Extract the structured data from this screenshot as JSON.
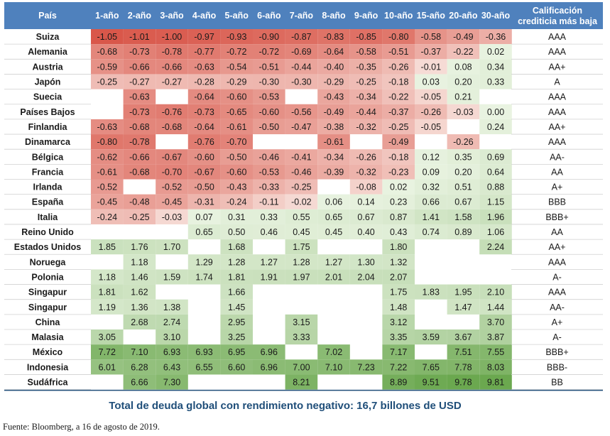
{
  "chart_data": {
    "type": "heatmap",
    "header_country": "País",
    "header_rating": "Calificación crediticia más baja",
    "columns": [
      "1-año",
      "2-año",
      "3-año",
      "4-año",
      "5-año",
      "6-año",
      "7-año",
      "8-año",
      "9-año",
      "10-año",
      "15-año",
      "20-año",
      "30-año"
    ],
    "rows": [
      {
        "country": "Suiza",
        "values": [
          -1.05,
          -1.01,
          -1.0,
          -0.97,
          -0.93,
          -0.9,
          -0.87,
          -0.83,
          -0.85,
          -0.8,
          -0.58,
          -0.49,
          -0.36
        ],
        "rating": "AAA"
      },
      {
        "country": "Alemania",
        "values": [
          -0.68,
          -0.73,
          -0.78,
          -0.77,
          -0.72,
          -0.72,
          -0.69,
          -0.64,
          -0.58,
          -0.51,
          -0.37,
          -0.22,
          0.02
        ],
        "rating": "AAA"
      },
      {
        "country": "Austria",
        "values": [
          -0.59,
          -0.66,
          -0.66,
          -0.63,
          -0.54,
          -0.51,
          -0.44,
          -0.4,
          -0.35,
          -0.26,
          -0.01,
          0.08,
          0.34
        ],
        "rating": "AA+"
      },
      {
        "country": "Japón",
        "values": [
          -0.25,
          -0.27,
          -0.27,
          -0.28,
          -0.29,
          -0.3,
          -0.3,
          -0.29,
          -0.25,
          -0.18,
          0.03,
          0.2,
          0.33
        ],
        "rating": "A"
      },
      {
        "country": "Suecia",
        "values": [
          null,
          -0.63,
          null,
          -0.64,
          -0.6,
          -0.53,
          null,
          -0.43,
          -0.34,
          -0.22,
          -0.05,
          0.21,
          null
        ],
        "rating": "AAA"
      },
      {
        "country": "Países Bajos",
        "values": [
          null,
          -0.73,
          -0.76,
          -0.73,
          -0.65,
          -0.6,
          -0.56,
          -0.49,
          -0.44,
          -0.37,
          -0.26,
          -0.03,
          0.0
        ],
        "rating": "AAA"
      },
      {
        "country": "Finlandia",
        "values": [
          -0.63,
          -0.68,
          -0.68,
          -0.64,
          -0.61,
          -0.5,
          -0.47,
          -0.38,
          -0.32,
          -0.25,
          -0.05,
          null,
          0.24
        ],
        "rating": "AA+"
      },
      {
        "country": "Dinamarca",
        "values": [
          -0.8,
          -0.78,
          null,
          -0.76,
          -0.7,
          null,
          null,
          -0.61,
          null,
          -0.49,
          null,
          -0.26,
          null
        ],
        "rating": "AAA"
      },
      {
        "country": "Bélgica",
        "values": [
          -0.62,
          -0.66,
          -0.67,
          -0.6,
          -0.5,
          -0.46,
          -0.41,
          -0.34,
          -0.26,
          -0.18,
          0.12,
          0.35,
          0.69
        ],
        "rating": "AA-"
      },
      {
        "country": "Francia",
        "values": [
          -0.61,
          -0.68,
          -0.7,
          -0.67,
          -0.6,
          -0.53,
          -0.46,
          -0.39,
          -0.32,
          -0.23,
          0.09,
          0.2,
          0.64
        ],
        "rating": "AA"
      },
      {
        "country": "Irlanda",
        "values": [
          -0.52,
          null,
          -0.52,
          -0.5,
          -0.43,
          -0.33,
          -0.25,
          null,
          -0.08,
          0.02,
          0.32,
          0.51,
          0.88
        ],
        "rating": "A+"
      },
      {
        "country": "España",
        "values": [
          -0.45,
          -0.48,
          -0.45,
          -0.31,
          -0.24,
          -0.11,
          -0.02,
          0.06,
          0.14,
          0.23,
          0.66,
          0.67,
          1.15
        ],
        "rating": "BBB"
      },
      {
        "country": "Italia",
        "values": [
          -0.24,
          -0.25,
          -0.03,
          0.07,
          0.31,
          0.33,
          0.55,
          0.65,
          0.67,
          0.87,
          1.41,
          1.58,
          1.96
        ],
        "rating": "BBB+"
      },
      {
        "country": "Reino Unido",
        "values": [
          null,
          null,
          null,
          0.65,
          0.5,
          0.46,
          0.45,
          0.45,
          0.4,
          0.43,
          0.74,
          0.89,
          1.06
        ],
        "rating": "AA"
      },
      {
        "country": "Estados Unidos",
        "values": [
          1.85,
          1.76,
          1.7,
          null,
          1.68,
          null,
          1.75,
          null,
          null,
          1.8,
          null,
          null,
          2.24
        ],
        "rating": "AA+"
      },
      {
        "country": "Noruega",
        "values": [
          null,
          1.18,
          null,
          1.29,
          1.28,
          1.27,
          1.28,
          1.27,
          1.3,
          1.32,
          null,
          null,
          null
        ],
        "rating": "AAA"
      },
      {
        "country": "Polonia",
        "values": [
          1.18,
          1.46,
          1.59,
          1.74,
          1.81,
          1.91,
          1.97,
          2.01,
          2.04,
          2.07,
          null,
          null,
          null
        ],
        "rating": "A-"
      },
      {
        "country": "Singapur",
        "values": [
          1.81,
          1.62,
          null,
          null,
          1.66,
          null,
          null,
          null,
          null,
          1.75,
          1.83,
          1.95,
          2.1
        ],
        "rating": "AAA"
      },
      {
        "country": "Singapur",
        "values": [
          1.19,
          1.36,
          1.38,
          null,
          1.45,
          null,
          null,
          null,
          null,
          1.48,
          null,
          1.47,
          1.44
        ],
        "rating": "AA-"
      },
      {
        "country": "China",
        "values": [
          null,
          2.68,
          2.74,
          null,
          2.95,
          null,
          3.15,
          null,
          null,
          3.12,
          null,
          null,
          3.7
        ],
        "rating": "A+"
      },
      {
        "country": "Malasia",
        "values": [
          3.05,
          null,
          3.1,
          null,
          3.25,
          null,
          3.33,
          null,
          null,
          3.35,
          3.59,
          3.67,
          3.87
        ],
        "rating": "A-"
      },
      {
        "country": "México",
        "values": [
          7.72,
          7.1,
          6.93,
          6.93,
          6.95,
          6.96,
          null,
          7.02,
          null,
          7.17,
          null,
          7.51,
          7.55
        ],
        "rating": "BBB+"
      },
      {
        "country": "Indonesia",
        "values": [
          6.01,
          6.28,
          6.43,
          6.55,
          6.6,
          6.96,
          7.0,
          7.1,
          7.23,
          7.22,
          7.65,
          7.78,
          8.03
        ],
        "rating": "BBB-"
      },
      {
        "country": "Sudáfrica",
        "values": [
          null,
          6.66,
          7.3,
          null,
          null,
          null,
          8.21,
          null,
          null,
          8.89,
          9.51,
          9.78,
          9.81
        ],
        "rating": "BB"
      }
    ],
    "colors": {
      "header_bg": "#4f81bd",
      "negative_strong": "#d9574a",
      "negative_light": "#f6dcd6",
      "positive_light": "#e9f3e1",
      "positive_strong": "#6ba84f",
      "border": "#1f4e79"
    }
  },
  "footer": {
    "summary": "Total de deuda global con rendimiento negativo: 16,7 billones de USD",
    "source": "Fuente: Bloomberg, a 16 de agosto de 2019."
  }
}
